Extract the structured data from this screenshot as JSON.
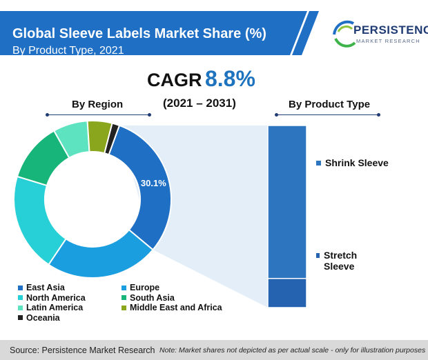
{
  "header": {
    "title": "Global Sleeve Labels Market Share (%)",
    "subtitle": "By Product Type, 2021"
  },
  "logo": {
    "name": "PERSISTENCE",
    "tagline": "MARKET RESEARCH"
  },
  "cagr": {
    "label": "CAGR",
    "value": "8.8%",
    "period": "(2021 – 2031)"
  },
  "region_heading": "By Region",
  "product_heading": "By Product Type",
  "footer": {
    "source": "Source: Persistence Market Research",
    "note": "Note: Market shares not depicted as per actual scale - only for illustration purposes"
  },
  "chart_data": [
    {
      "type": "pie",
      "title": "By Region",
      "categories": [
        "East Asia",
        "Europe",
        "North America",
        "South Asia",
        "Latin America",
        "Middle East and Africa",
        "Oceania"
      ],
      "values": [
        30.1,
        23.0,
        20.0,
        12.0,
        7.0,
        5.0,
        1.5
      ],
      "colors": [
        "#1f6fc5",
        "#1b9ee0",
        "#26d0d6",
        "#18b57a",
        "#5ee3c1",
        "#8aa61c",
        "#222222"
      ],
      "data_labels": [
        "30.1%",
        "",
        "",
        "",
        "",
        "",
        ""
      ],
      "legend_position": "bottom"
    },
    {
      "type": "bar",
      "title": "By Product Type",
      "categories": [
        "Shrink Sleeve",
        "Stretch Sleeve"
      ],
      "values": [
        84,
        16
      ],
      "colors": [
        "#2e75c0",
        "#2563b0"
      ],
      "legend_position": "right"
    }
  ]
}
